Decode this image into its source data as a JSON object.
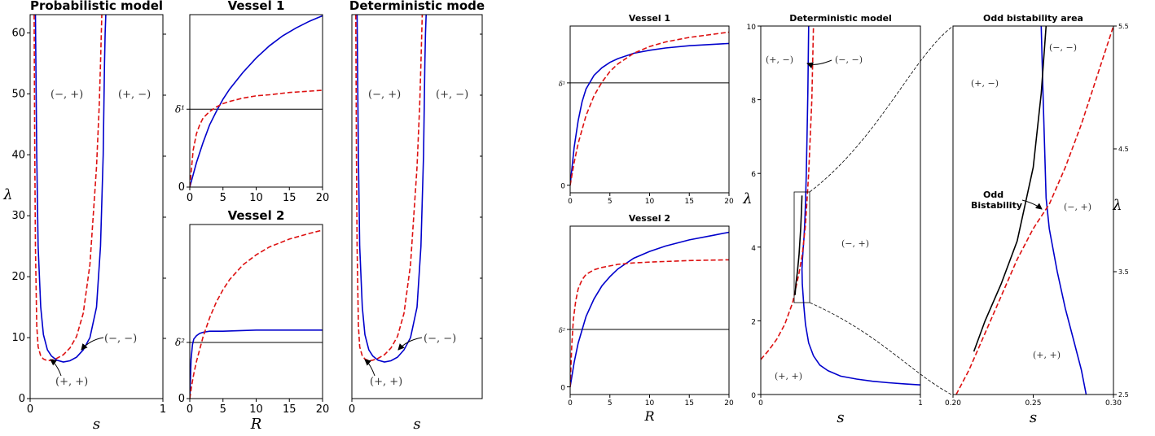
{
  "colors": {
    "blue": "#0000cc",
    "red": "#dd1111",
    "black": "#000000"
  },
  "chart_data": [
    {
      "id": "left-probabilistic",
      "type": "line",
      "title": "Probabilistic model",
      "xlabel": "s",
      "ylabel": "λ",
      "xlim": [
        0,
        1
      ],
      "ylim": [
        0,
        63
      ],
      "xticks": [
        "0",
        "1"
      ],
      "yticks": [
        "0",
        "10",
        "20",
        "30",
        "40",
        "50",
        "60"
      ],
      "annotations": [
        "(−, +)",
        "(+, −)",
        "(−, −)",
        "(+, +)"
      ],
      "series": [
        {
          "color": "blue",
          "style": "solid",
          "x": [
            0.04,
            0.05,
            0.06,
            0.08,
            0.1,
            0.13,
            0.16,
            0.2,
            0.25,
            0.3,
            0.35,
            0.4,
            0.45,
            0.5,
            0.53,
            0.55,
            0.56,
            0.565,
            0.57
          ],
          "y": [
            63,
            40,
            25,
            15,
            10.5,
            8,
            7,
            6.3,
            6,
            6.2,
            6.8,
            8,
            10,
            15,
            25,
            40,
            55,
            60,
            63
          ]
        },
        {
          "color": "red",
          "style": "dashed",
          "x": [
            0.03,
            0.035,
            0.04,
            0.05,
            0.06,
            0.08,
            0.1,
            0.13,
            0.16,
            0.2,
            0.25,
            0.3,
            0.35,
            0.4,
            0.45,
            0.5,
            0.52,
            0.53,
            0.54
          ],
          "y": [
            63,
            40,
            25,
            12,
            8.5,
            7,
            6.5,
            6.2,
            6.3,
            6.6,
            7.2,
            8.3,
            10.2,
            14,
            22,
            38,
            48,
            55,
            63
          ]
        }
      ]
    },
    {
      "id": "left-vessel-1",
      "type": "line",
      "title": "Vessel 1",
      "xlabel": "",
      "xlim": [
        0,
        20
      ],
      "ylim": [
        0,
        1.55
      ],
      "xticks": [
        "0",
        "5",
        "10",
        "15",
        "20"
      ],
      "yticks": [
        "0",
        "δ¹"
      ],
      "hline": 0.7,
      "series": [
        {
          "color": "blue",
          "style": "solid",
          "x": [
            0,
            1,
            2,
            3,
            4,
            5,
            6,
            8,
            10,
            12,
            14,
            16,
            18,
            20
          ],
          "y": [
            0,
            0.22,
            0.4,
            0.56,
            0.68,
            0.79,
            0.88,
            1.03,
            1.16,
            1.27,
            1.36,
            1.43,
            1.49,
            1.54
          ]
        },
        {
          "color": "red",
          "style": "dashed",
          "x": [
            0,
            0.5,
            1,
            1.5,
            2,
            3,
            4,
            5,
            6,
            8,
            10,
            12,
            15,
            20
          ],
          "y": [
            0,
            0.33,
            0.48,
            0.56,
            0.62,
            0.68,
            0.72,
            0.75,
            0.77,
            0.8,
            0.82,
            0.83,
            0.85,
            0.87
          ]
        }
      ]
    },
    {
      "id": "left-vessel-2",
      "type": "line",
      "title": "Vessel 2",
      "xlabel": "R",
      "xlim": [
        0,
        20
      ],
      "ylim": [
        0,
        1.55
      ],
      "xticks": [
        "0",
        "5",
        "10",
        "15",
        "20"
      ],
      "yticks": [
        "0",
        "δ²"
      ],
      "hline": 0.5,
      "series": [
        {
          "color": "blue",
          "style": "solid",
          "x": [
            0,
            0.2,
            0.4,
            0.6,
            1,
            1.5,
            2,
            3,
            5,
            10,
            15,
            20
          ],
          "y": [
            0,
            0.35,
            0.48,
            0.53,
            0.56,
            0.58,
            0.59,
            0.6,
            0.6,
            0.61,
            0.61,
            0.61
          ]
        },
        {
          "color": "red",
          "style": "dashed",
          "x": [
            0,
            0.3,
            0.6,
            1,
            2,
            3,
            4,
            5,
            6,
            8,
            10,
            12,
            15,
            18,
            20
          ],
          "y": [
            0,
            0.12,
            0.22,
            0.33,
            0.55,
            0.72,
            0.86,
            0.97,
            1.06,
            1.19,
            1.28,
            1.35,
            1.42,
            1.47,
            1.5
          ]
        }
      ]
    },
    {
      "id": "left-deterministic",
      "type": "line",
      "title": "Deterministic mode",
      "xlabel": "s",
      "xlim": [
        0,
        1
      ],
      "ylim": [
        0,
        63
      ],
      "xticks": [
        "0"
      ],
      "annotations": [
        "(−, +)",
        "(+, −)",
        "(−, −)",
        "(+, +)"
      ],
      "series": [
        {
          "color": "blue",
          "style": "solid",
          "x": [
            0.04,
            0.05,
            0.06,
            0.08,
            0.1,
            0.13,
            0.16,
            0.2,
            0.25,
            0.3,
            0.35,
            0.4,
            0.45,
            0.5,
            0.53,
            0.55,
            0.56,
            0.565,
            0.57
          ],
          "y": [
            63,
            40,
            25,
            15,
            10.5,
            8,
            7,
            6.3,
            6,
            6.2,
            6.8,
            8,
            10,
            15,
            25,
            40,
            55,
            60,
            63
          ]
        },
        {
          "color": "red",
          "style": "dashed",
          "x": [
            0.03,
            0.035,
            0.04,
            0.05,
            0.06,
            0.08,
            0.1,
            0.13,
            0.16,
            0.2,
            0.25,
            0.3,
            0.35,
            0.4,
            0.45,
            0.5,
            0.52,
            0.53,
            0.54
          ],
          "y": [
            63,
            40,
            25,
            12,
            8.5,
            7,
            6.5,
            6.2,
            6.3,
            6.6,
            7.2,
            8.3,
            10.2,
            14,
            22,
            38,
            48,
            55,
            63
          ]
        }
      ]
    },
    {
      "id": "right-vessel-1",
      "type": "line",
      "title": "Vessel 1",
      "xlabel": "",
      "xlim": [
        0,
        20
      ],
      "ylim": [
        -0.1,
        2.1
      ],
      "xticks": [
        "0",
        "5",
        "10",
        "15",
        "20"
      ],
      "yticks": [
        "0",
        "δ¹"
      ],
      "hline": 1.35,
      "series": [
        {
          "color": "blue",
          "style": "solid",
          "x": [
            0,
            0.5,
            1,
            1.5,
            2,
            3,
            4,
            5,
            6,
            8,
            10,
            12,
            15,
            20
          ],
          "y": [
            0,
            0.5,
            0.85,
            1.1,
            1.27,
            1.45,
            1.55,
            1.62,
            1.67,
            1.74,
            1.78,
            1.81,
            1.84,
            1.87
          ]
        },
        {
          "color": "red",
          "style": "dashed",
          "x": [
            0,
            0.5,
            1,
            2,
            3,
            4,
            5,
            6,
            8,
            10,
            12,
            15,
            20
          ],
          "y": [
            0,
            0.3,
            0.55,
            0.92,
            1.18,
            1.36,
            1.5,
            1.6,
            1.74,
            1.83,
            1.89,
            1.95,
            2.02
          ]
        }
      ]
    },
    {
      "id": "right-vessel-2",
      "type": "line",
      "title": "Vessel 2",
      "xlabel": "R",
      "xlim": [
        0,
        20
      ],
      "ylim": [
        -0.1,
        2.1
      ],
      "xticks": [
        "0",
        "5",
        "10",
        "15",
        "20"
      ],
      "yticks": [
        "0",
        "δ²"
      ],
      "hline": 0.75,
      "series": [
        {
          "color": "blue",
          "style": "solid",
          "x": [
            0,
            0.5,
            1,
            2,
            3,
            4,
            5,
            6,
            8,
            10,
            12,
            15,
            18,
            20
          ],
          "y": [
            0,
            0.32,
            0.57,
            0.92,
            1.15,
            1.32,
            1.44,
            1.54,
            1.68,
            1.77,
            1.84,
            1.92,
            1.98,
            2.02
          ]
        },
        {
          "color": "red",
          "style": "dashed",
          "x": [
            0,
            0.2,
            0.4,
            0.7,
            1,
            1.5,
            2,
            3,
            4,
            5,
            6,
            8,
            10,
            15,
            20
          ],
          "y": [
            0,
            0.55,
            0.88,
            1.12,
            1.28,
            1.4,
            1.47,
            1.53,
            1.56,
            1.58,
            1.6,
            1.62,
            1.63,
            1.65,
            1.66
          ]
        }
      ]
    },
    {
      "id": "right-deterministic",
      "type": "line",
      "title": "Deterministic model",
      "xlabel": "s",
      "ylabel": "λ",
      "xlim": [
        0,
        1
      ],
      "ylim": [
        0,
        10
      ],
      "xticks": [
        "0",
        "1"
      ],
      "yticks": [
        "0",
        "2",
        "4",
        "6",
        "8",
        "10"
      ],
      "annotations": [
        "(+, −)",
        "(−, −)",
        "(−, +)",
        "(+, +)"
      ],
      "series": [
        {
          "color": "blue",
          "style": "solid",
          "x": [
            0.3,
            0.295,
            0.29,
            0.285,
            0.28,
            0.275,
            0.27,
            0.265,
            0.26,
            0.258
          ],
          "y": [
            10,
            8.2,
            7,
            6,
            5.2,
            4.6,
            4.2,
            3.9,
            3.6,
            3.4
          ]
        },
        {
          "color": "blue",
          "style": "solid",
          "x": [
            0.258,
            0.26,
            0.27,
            0.28,
            0.3,
            0.33,
            0.37,
            0.42,
            0.5,
            0.6,
            0.7,
            0.8,
            0.9,
            1.0
          ],
          "y": [
            3.4,
            3.0,
            2.4,
            1.9,
            1.4,
            1.05,
            0.8,
            0.65,
            0.5,
            0.42,
            0.36,
            0.32,
            0.29,
            0.26
          ]
        },
        {
          "color": "red",
          "style": "dashed",
          "x": [
            0,
            0.05,
            0.1,
            0.15,
            0.2,
            0.22,
            0.24,
            0.26,
            0.28,
            0.3,
            0.32,
            0.33
          ],
          "y": [
            0.95,
            1.2,
            1.5,
            1.9,
            2.5,
            2.9,
            3.3,
            3.8,
            4.6,
            6.0,
            8.0,
            10
          ]
        },
        {
          "color": "black",
          "style": "solid",
          "x": [
            0.215,
            0.22,
            0.23,
            0.24,
            0.25,
            0.255,
            0.258
          ],
          "y": [
            2.7,
            3.0,
            3.35,
            3.8,
            4.5,
            5.0,
            5.4
          ]
        }
      ]
    },
    {
      "id": "right-odd-bistability",
      "type": "line",
      "title": "Odd bistability area",
      "xlabel": "s",
      "ylabel": "λ",
      "xlim": [
        0.2,
        0.3
      ],
      "ylim": [
        2.5,
        5.5
      ],
      "xticks": [
        "0.20",
        "0.25",
        "0.30"
      ],
      "yticks": [
        "2.5",
        "3.5",
        "4.5",
        "5.5"
      ],
      "annotations": [
        "(+, −)",
        "(−, −)",
        "(−, +)",
        "(+, +)",
        "Odd Bistability"
      ],
      "series": [
        {
          "color": "blue",
          "style": "solid",
          "x": [
            0.255,
            0.256,
            0.257,
            0.258,
            0.26,
            0.265,
            0.27,
            0.275,
            0.28,
            0.283
          ],
          "y": [
            5.5,
            5.0,
            4.55,
            4.1,
            3.85,
            3.5,
            3.2,
            2.95,
            2.7,
            2.5
          ]
        },
        {
          "color": "red",
          "style": "dashed",
          "x": [
            0.202,
            0.21,
            0.22,
            0.23,
            0.24,
            0.25,
            0.26,
            0.27,
            0.28,
            0.29,
            0.3
          ],
          "y": [
            2.5,
            2.7,
            3.0,
            3.3,
            3.6,
            3.85,
            4.05,
            4.35,
            4.7,
            5.1,
            5.5
          ]
        },
        {
          "color": "black",
          "style": "solid",
          "x": [
            0.213,
            0.22,
            0.23,
            0.24,
            0.25,
            0.255,
            0.258
          ],
          "y": [
            2.85,
            3.1,
            3.4,
            3.75,
            4.35,
            4.95,
            5.5
          ]
        }
      ]
    }
  ]
}
